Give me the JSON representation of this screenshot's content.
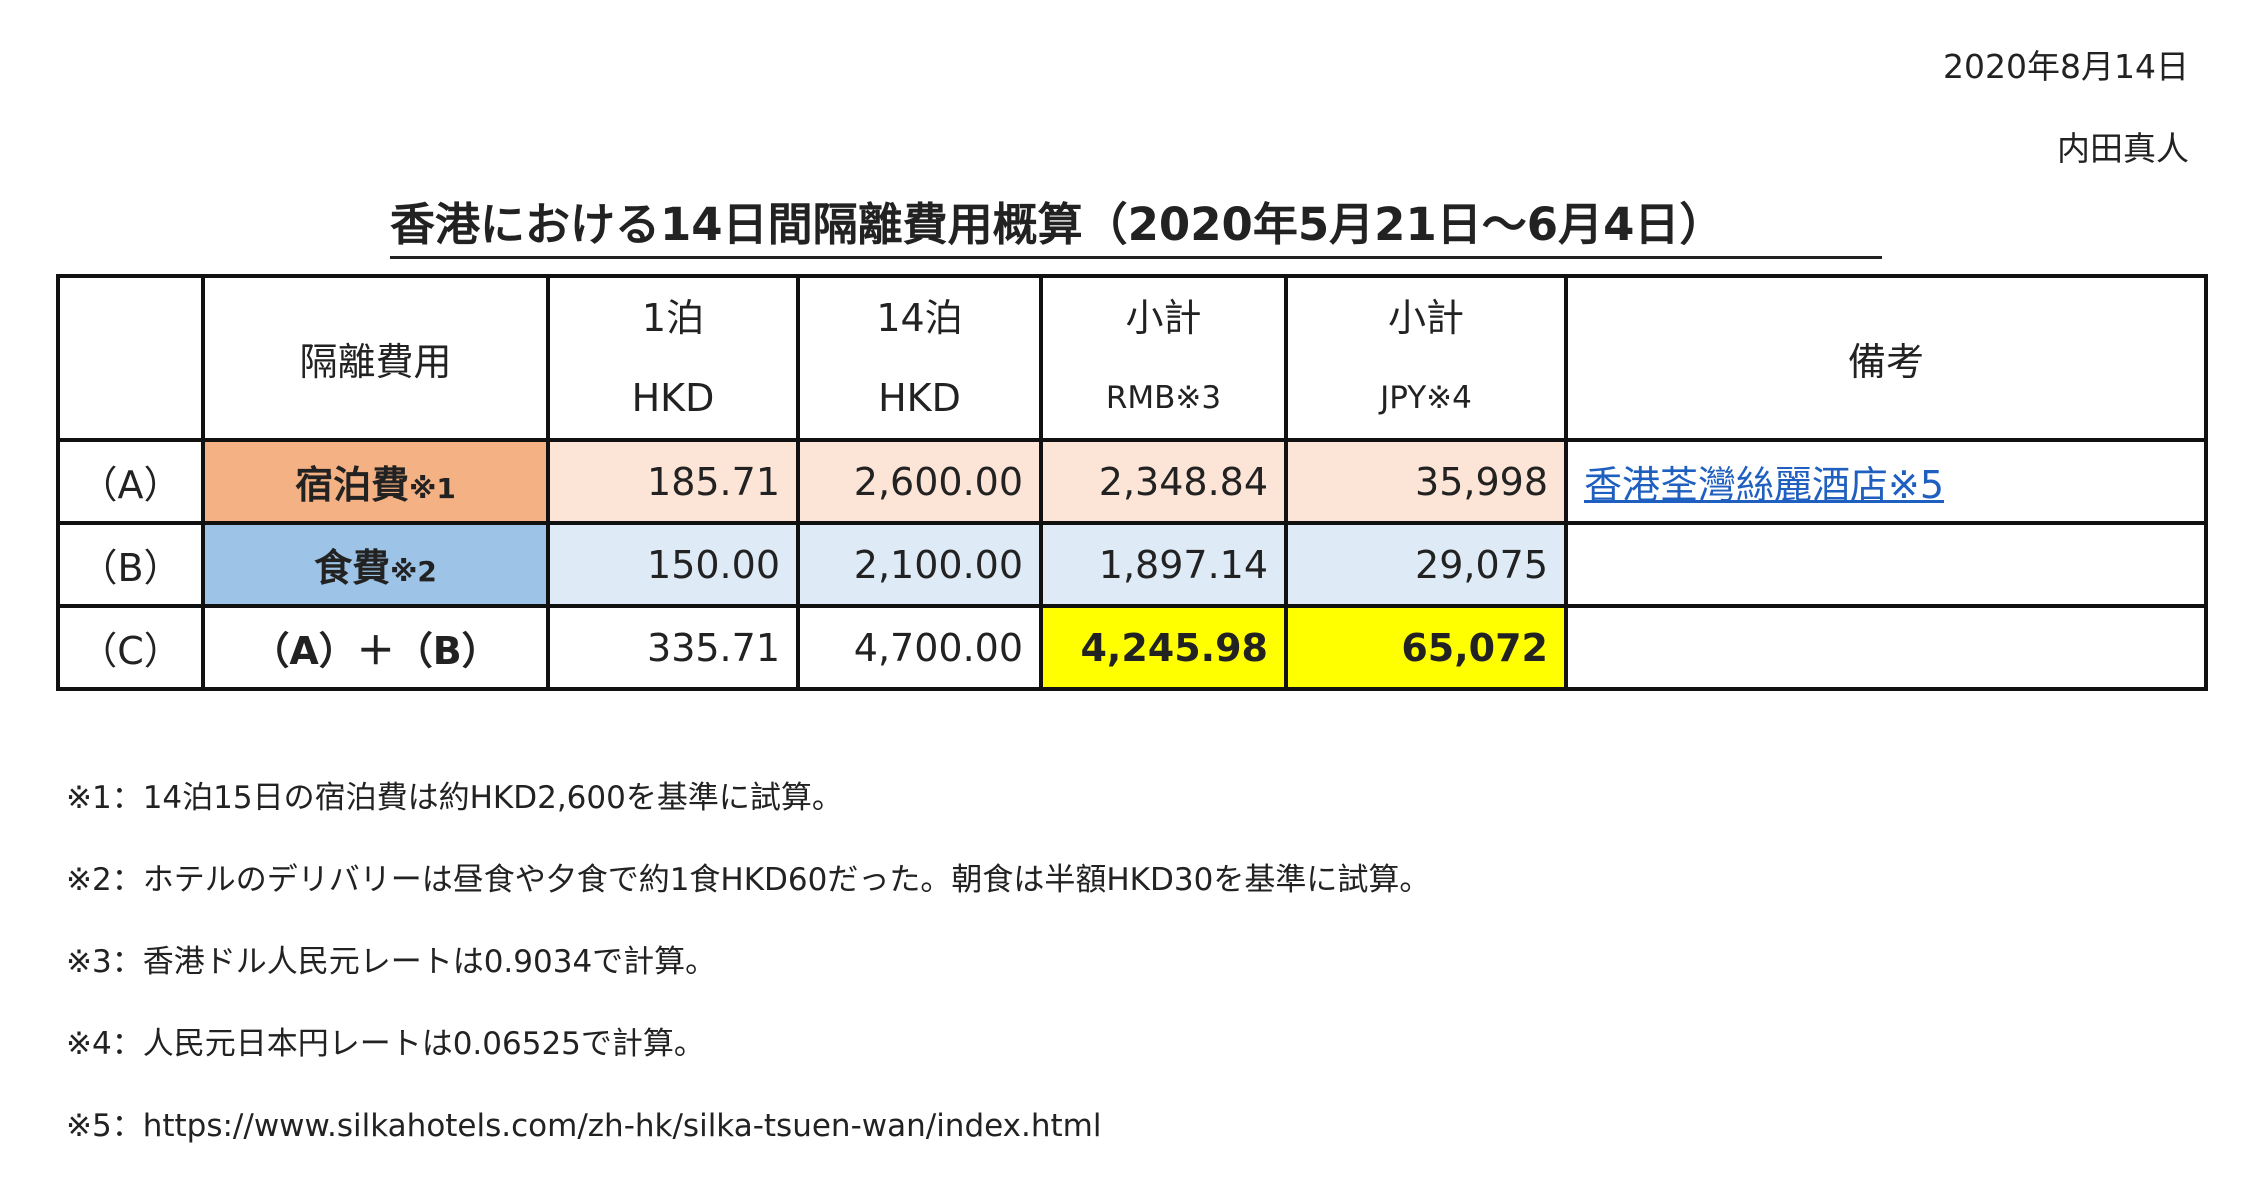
{
  "header": {
    "date": "2020年8月14日",
    "author": "内田真人"
  },
  "title": "香港における14日間隔離費用概算（2020年5月21日～6月4日）",
  "table": {
    "headers": {
      "item": "隔離費用",
      "night1": {
        "line1": "1泊",
        "line2": "HKD"
      },
      "night14": {
        "line1": "14泊",
        "line2": "HKD"
      },
      "subtotal_rmb": {
        "line1": "小計",
        "line2": "RMB※3"
      },
      "subtotal_jpy": {
        "line1": "小計",
        "line2": "JPY※4"
      },
      "remarks": "備考"
    },
    "rows": [
      {
        "id": "（A）",
        "label": "宿泊費",
        "mark": "※1",
        "night1": "185.71",
        "night14": "2,600.00",
        "rmb": "2,348.84",
        "jpy": "35,998",
        "remark": "香港荃灣絲麗酒店※5"
      },
      {
        "id": "（B）",
        "label": "食費",
        "mark": "※2",
        "night1": "150.00",
        "night14": "2,100.00",
        "rmb": "1,897.14",
        "jpy": "29,075",
        "remark": ""
      },
      {
        "id": "（C）",
        "label": "（A）＋（B）",
        "night1": "335.71",
        "night14": "4,700.00",
        "rmb": "4,245.98",
        "jpy": "65,072",
        "remark": ""
      }
    ]
  },
  "footnotes": [
    "※1：14泊15日の宿泊費は約HKD2,600を基準に試算。",
    "※2：ホテルのデリバリーは昼食や夕食で約1食HKD60だった。朝食は半額HKD30を基準に試算。",
    "※3：香港ドル人民元レートは0.9034で計算。",
    "※4：人民元日本円レートは0.06525で計算。",
    "※5：https://www.silkahotels.com/zh-hk/silka-tsuen-wan/index.html"
  ],
  "colors": {
    "lodging_label": "#f4b183",
    "lodging_value": "#fce4d6",
    "meal_label": "#9dc3e6",
    "meal_value": "#deebf7",
    "highlight": "#ffff00",
    "link": "#1f5fbf"
  }
}
